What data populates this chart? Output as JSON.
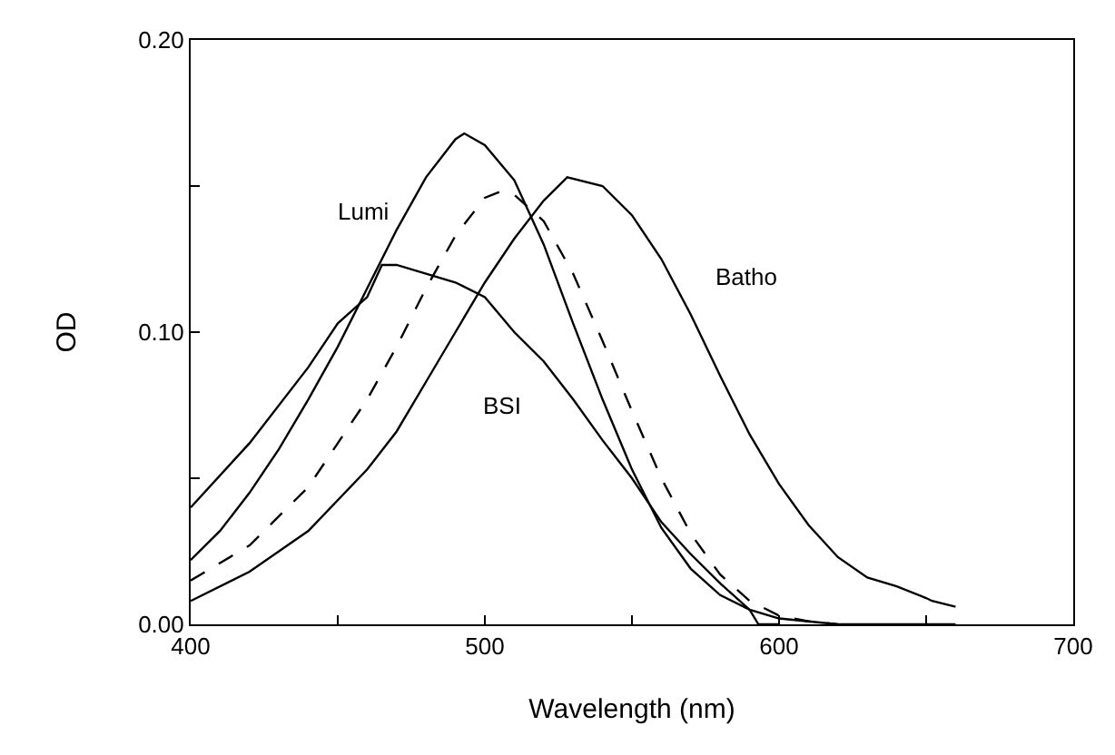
{
  "chart_data": {
    "type": "line",
    "xlabel": "Wavelength (nm)",
    "ylabel": "OD",
    "xlim": [
      400,
      700
    ],
    "ylim": [
      0,
      0.2
    ],
    "xticks": [
      400,
      {
        "value": 450,
        "label": null
      },
      500,
      {
        "value": 550,
        "label": null
      },
      600,
      {
        "value": 650,
        "label": null
      },
      700
    ],
    "yticks": [
      {
        "value": 0,
        "label": "0.00"
      },
      {
        "value": 0.05,
        "label": null
      },
      {
        "value": 0.1,
        "label": "0.10"
      },
      {
        "value": 0.15,
        "label": null
      },
      {
        "value": 0.2,
        "label": "0.20"
      }
    ],
    "legend": false,
    "marker": "none",
    "series": [
      {
        "name": "Lumi",
        "color": "#000000",
        "line_style": "solid",
        "x": [
          400,
          410,
          420,
          430,
          440,
          450,
          460,
          470,
          480,
          490,
          493,
          500,
          510,
          520,
          530,
          540,
          550,
          560,
          570,
          580,
          590,
          600,
          610,
          620,
          660
        ],
        "values": [
          0.022,
          0.032,
          0.045,
          0.06,
          0.077,
          0.095,
          0.115,
          0.135,
          0.153,
          0.166,
          0.168,
          0.164,
          0.152,
          0.13,
          0.103,
          0.077,
          0.053,
          0.033,
          0.019,
          0.01,
          0.005,
          0.002,
          0.001,
          0.0,
          0.0
        ]
      },
      {
        "color": "#000000",
        "line_style": "dashed",
        "x": [
          400,
          420,
          440,
          460,
          470,
          480,
          490,
          500,
          505,
          510,
          520,
          530,
          540,
          550,
          560,
          570,
          580,
          590,
          600,
          610,
          620
        ],
        "values": [
          0.015,
          0.027,
          0.047,
          0.077,
          0.095,
          0.115,
          0.133,
          0.146,
          0.148,
          0.147,
          0.138,
          0.12,
          0.097,
          0.073,
          0.05,
          0.031,
          0.017,
          0.008,
          0.003,
          0.001,
          0.0
        ]
      },
      {
        "name": "Batho",
        "color": "#000000",
        "line_style": "solid",
        "x": [
          400,
          420,
          440,
          460,
          470,
          480,
          490,
          500,
          510,
          520,
          528,
          540,
          550,
          560,
          570,
          580,
          590,
          600,
          610,
          620,
          630,
          640,
          650,
          652,
          660
        ],
        "values": [
          0.008,
          0.018,
          0.032,
          0.053,
          0.066,
          0.083,
          0.1,
          0.117,
          0.132,
          0.145,
          0.153,
          0.15,
          0.14,
          0.125,
          0.106,
          0.085,
          0.065,
          0.048,
          0.034,
          0.023,
          0.016,
          0.013,
          0.009,
          0.008,
          0.006
        ]
      },
      {
        "name": "BSI",
        "color": "#000000",
        "line_style": "solid",
        "x": [
          400,
          420,
          440,
          450,
          460,
          465,
          470,
          480,
          490,
          500,
          510,
          520,
          530,
          540,
          550,
          560,
          570,
          580,
          590,
          593,
          600
        ],
        "values": [
          0.04,
          0.062,
          0.088,
          0.103,
          0.112,
          0.123,
          0.123,
          0.12,
          0.117,
          0.112,
          0.1,
          0.09,
          0.077,
          0.063,
          0.05,
          0.035,
          0.024,
          0.014,
          0.005,
          0.0,
          0.0
        ]
      }
    ]
  }
}
